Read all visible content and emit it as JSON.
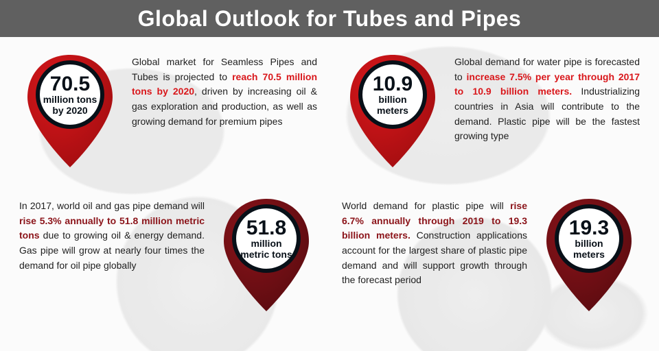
{
  "title": "Global Outlook for Tubes and Pipes",
  "colors": {
    "bar": "#606060",
    "text": "#1e1e1e",
    "red_bright": "#d9171b",
    "red_bright_grad": "#a10d10",
    "red_dark": "#8b1319",
    "red_dark_grad": "#590b10",
    "white": "#ffffff",
    "black": "#081018"
  },
  "items": [
    {
      "layout": "pin-left",
      "pin_color": "bright",
      "big": "70.5",
      "line1": "million tons",
      "line2": "by 2020",
      "copy_pre": "Global market for Seamless Pipes and Tubes is projected to ",
      "highlight": "reach 70.5 million tons by 2020",
      "copy_post": ", driven by increasing oil & gas exploration and production, as well as growing demand for premium pipes",
      "hl_color": "#d9171b"
    },
    {
      "layout": "pin-left",
      "pin_color": "bright",
      "big": "10.9",
      "line1": "billion",
      "line2": "meters",
      "copy_pre": "Global demand for water pipe is forecasted to ",
      "highlight": "increase 7.5% per year through 2017 to 10.9 billion meters.",
      "copy_post": " Industrializing countries in Asia will contribute to the demand. Plastic pipe will be the fastest growing type",
      "hl_color": "#d9171b"
    },
    {
      "layout": "pin-right",
      "pin_color": "dark",
      "big": "51.8",
      "line1": "million",
      "line2": "metric tons",
      "copy_pre": "In 2017, world oil and gas pipe demand will ",
      "highlight": "rise 5.3% annually to 51.8 million metric tons",
      "copy_post": " due to growing oil & energy demand. Gas pipe will grow at nearly four times the demand for oil pipe globally",
      "hl_color": "#8b1319"
    },
    {
      "layout": "pin-right",
      "pin_color": "dark",
      "big": "19.3",
      "line1": "billion",
      "line2": "meters",
      "copy_pre": "World demand for plastic pipe will ",
      "highlight": "rise 6.7% annually through 2019 to 19.3 billion meters.",
      "copy_post": " Construction applications account for the largest share of plastic pipe demand and will support growth through the forecast period",
      "hl_color": "#8b1319"
    }
  ]
}
